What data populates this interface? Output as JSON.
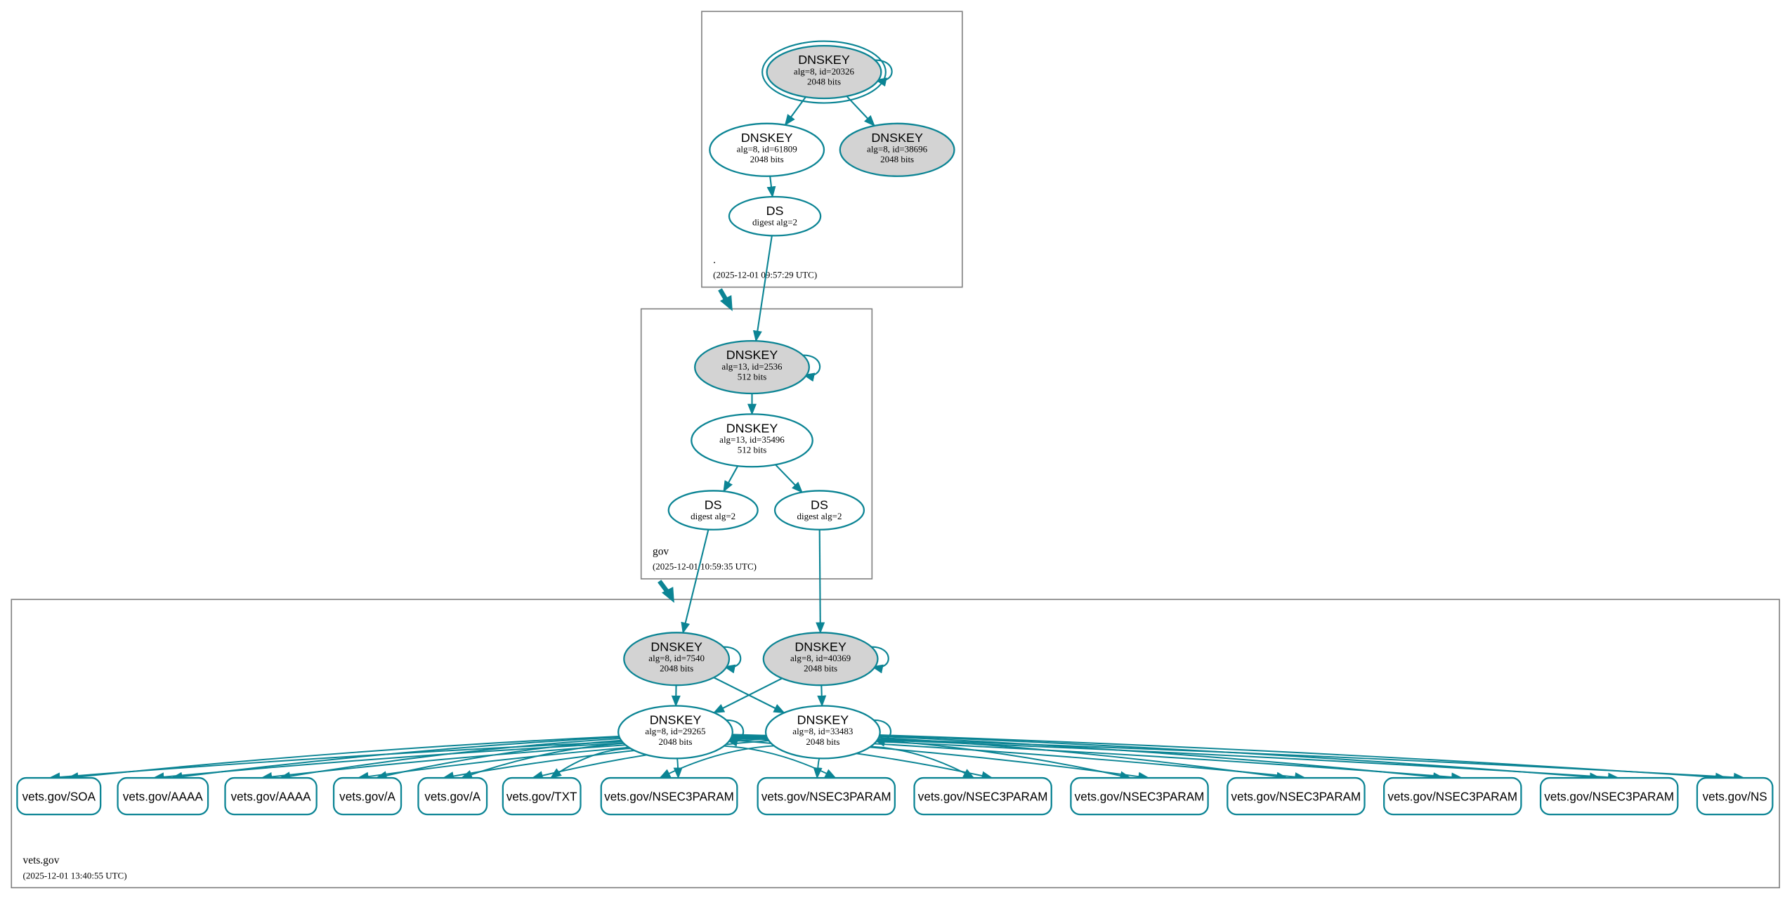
{
  "colors": {
    "edge": "#0b8494",
    "ksk_fill": "#d3d3d3",
    "node_fill": "#ffffff",
    "zone_border": "#808080"
  },
  "zones": [
    {
      "id": "root",
      "name": ".",
      "timestamp": "(2025-12-01 09:57:29 UTC)"
    },
    {
      "id": "gov",
      "name": "gov",
      "timestamp": "(2025-12-01 10:59:35 UTC)"
    },
    {
      "id": "vets",
      "name": "vets.gov",
      "timestamp": "(2025-12-01 13:40:55 UTC)"
    }
  ],
  "nodes": [
    {
      "id": "r20326",
      "zone": "root",
      "type": "DNSKEY",
      "lines": [
        "DNSKEY",
        "alg=8, id=20326",
        "2048 bits"
      ],
      "fill": "gray",
      "trust_anchor": true,
      "self_signed": true
    },
    {
      "id": "r61809",
      "zone": "root",
      "type": "DNSKEY",
      "lines": [
        "DNSKEY",
        "alg=8, id=61809",
        "2048 bits"
      ],
      "fill": "white"
    },
    {
      "id": "r38696",
      "zone": "root",
      "type": "DNSKEY",
      "lines": [
        "DNSKEY",
        "alg=8, id=38696",
        "2048 bits"
      ],
      "fill": "gray"
    },
    {
      "id": "rDS",
      "zone": "root",
      "type": "DS",
      "lines": [
        "DS",
        "digest alg=2"
      ],
      "fill": "white"
    },
    {
      "id": "g2536",
      "zone": "gov",
      "type": "DNSKEY",
      "lines": [
        "DNSKEY",
        "alg=13, id=2536",
        "512 bits"
      ],
      "fill": "gray",
      "self_signed": true
    },
    {
      "id": "g35496",
      "zone": "gov",
      "type": "DNSKEY",
      "lines": [
        "DNSKEY",
        "alg=13, id=35496",
        "512 bits"
      ],
      "fill": "white"
    },
    {
      "id": "gDS1",
      "zone": "gov",
      "type": "DS",
      "lines": [
        "DS",
        "digest alg=2"
      ],
      "fill": "white"
    },
    {
      "id": "gDS2",
      "zone": "gov",
      "type": "DS",
      "lines": [
        "DS",
        "digest alg=2"
      ],
      "fill": "white"
    },
    {
      "id": "v7540",
      "zone": "vets",
      "type": "DNSKEY",
      "lines": [
        "DNSKEY",
        "alg=8, id=7540",
        "2048 bits"
      ],
      "fill": "gray",
      "self_signed": true
    },
    {
      "id": "v40369",
      "zone": "vets",
      "type": "DNSKEY",
      "lines": [
        "DNSKEY",
        "alg=8, id=40369",
        "2048 bits"
      ],
      "fill": "gray",
      "self_signed": true
    },
    {
      "id": "v29265",
      "zone": "vets",
      "type": "DNSKEY",
      "lines": [
        "DNSKEY",
        "alg=8, id=29265",
        "2048 bits"
      ],
      "fill": "white",
      "self_signed": true
    },
    {
      "id": "v33483",
      "zone": "vets",
      "type": "DNSKEY",
      "lines": [
        "DNSKEY",
        "alg=8, id=33483",
        "2048 bits"
      ],
      "fill": "white",
      "self_signed": true
    }
  ],
  "rrsets": [
    "vets.gov/SOA",
    "vets.gov/AAAA",
    "vets.gov/AAAA",
    "vets.gov/A",
    "vets.gov/A",
    "vets.gov/TXT",
    "vets.gov/NSEC3PARAM",
    "vets.gov/NSEC3PARAM",
    "vets.gov/NSEC3PARAM",
    "vets.gov/NSEC3PARAM",
    "vets.gov/NSEC3PARAM",
    "vets.gov/NSEC3PARAM",
    "vets.gov/NSEC3PARAM",
    "vets.gov/NS"
  ],
  "edges": [
    [
      "r20326",
      "r61809"
    ],
    [
      "r20326",
      "r38696"
    ],
    [
      "r61809",
      "rDS"
    ],
    [
      "rDS",
      "g2536"
    ],
    [
      "g2536",
      "g35496"
    ],
    [
      "g35496",
      "gDS1"
    ],
    [
      "g35496",
      "gDS2"
    ],
    [
      "gDS1",
      "v7540"
    ],
    [
      "gDS2",
      "v40369"
    ],
    [
      "v7540",
      "v29265"
    ],
    [
      "v7540",
      "v33483"
    ],
    [
      "v40369",
      "v29265"
    ],
    [
      "v40369",
      "v33483"
    ]
  ],
  "zone_delegations": [
    [
      "root",
      "gov"
    ],
    [
      "gov",
      "vets"
    ]
  ],
  "rrset_signers": [
    "v29265",
    "v33483"
  ]
}
